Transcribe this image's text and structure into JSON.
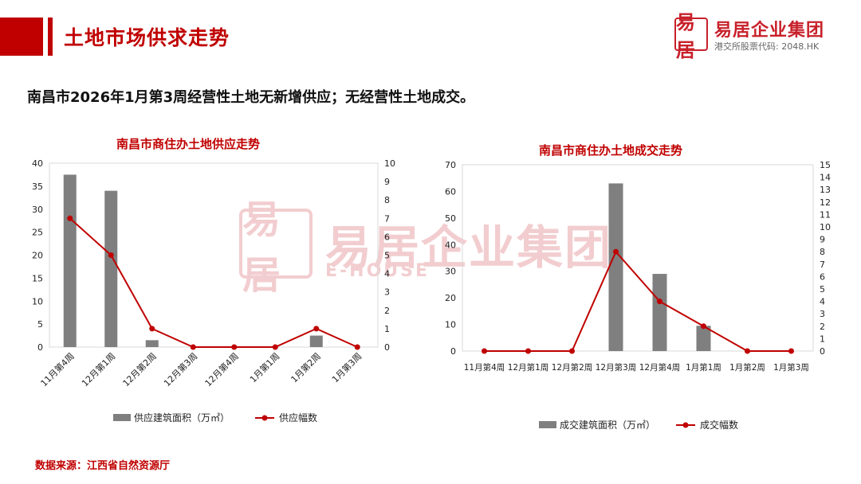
{
  "header": {
    "title": "土地市场供求走势",
    "logo": {
      "name": "易居企业集团",
      "code": "港交所股票代码: 2048.HK",
      "seal": "易居"
    }
  },
  "subtitle": "南昌市2026年1月第3周经营性土地无新增供应；无经营性土地成交。",
  "watermark": {
    "name": "易居企业集团",
    "en": "E-HOUSE"
  },
  "source": "数据来源：江西省自然资源厅",
  "colors": {
    "bar": "#7f7f7f",
    "line": "#c00000",
    "title": "#c00000",
    "axis": "#d9d9d9"
  },
  "chart_data": [
    {
      "type": "bar+line",
      "title": "南昌市商住办土地供应走势",
      "categories": [
        "11月第4周",
        "12月第1周",
        "12月第2周",
        "12月第3周",
        "12月第4周",
        "1月第1周",
        "1月第2周",
        "1月第3周"
      ],
      "series": [
        {
          "name": "供应建筑面积（万㎡）",
          "type": "bar",
          "axis": "left",
          "values": [
            37.5,
            34,
            1.5,
            0,
            0,
            0,
            2.5,
            0
          ]
        },
        {
          "name": "供应幅数",
          "type": "line",
          "axis": "right",
          "values": [
            7,
            5,
            1,
            0,
            0,
            0,
            1,
            0
          ]
        }
      ],
      "ylim_left": [
        0,
        40
      ],
      "yticks_left": [
        0,
        5,
        10,
        15,
        20,
        25,
        30,
        35,
        40
      ],
      "ylim_right": [
        0,
        10
      ],
      "yticks_right": [
        0,
        1,
        2,
        3,
        4,
        5,
        6,
        7,
        8,
        9,
        10
      ],
      "grid": false,
      "legend": "bottom",
      "xlabel_rotation": "slanted"
    },
    {
      "type": "bar+line",
      "title": "南昌市商住办土地成交走势",
      "categories": [
        "11月第4周",
        "12月第1周",
        "12月第2周",
        "12月第3周",
        "12月第4周",
        "1月第1周",
        "1月第2周",
        "1月第3周"
      ],
      "series": [
        {
          "name": "成交建筑面积（万㎡）",
          "type": "bar",
          "axis": "left",
          "values": [
            0,
            0,
            0,
            63,
            29,
            9.5,
            0,
            0
          ]
        },
        {
          "name": "成交幅数",
          "type": "line",
          "axis": "right",
          "values": [
            0,
            0,
            0,
            8,
            4,
            2,
            0,
            0
          ]
        }
      ],
      "ylim_left": [
        0,
        70
      ],
      "yticks_left": [
        0,
        10,
        20,
        30,
        40,
        50,
        60,
        70
      ],
      "ylim_right": [
        0,
        15
      ],
      "yticks_right": [
        0,
        1,
        2,
        3,
        4,
        5,
        6,
        7,
        8,
        9,
        10,
        11,
        12,
        13,
        14,
        15
      ],
      "grid": false,
      "legend": "bottom",
      "xlabel_rotation": "horizontal"
    }
  ]
}
